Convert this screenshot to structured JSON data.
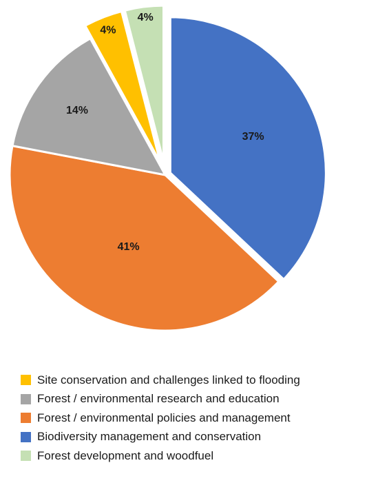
{
  "chart_data": {
    "type": "pie",
    "title": "",
    "slices": [
      {
        "label": "Biodiversity management and conservation",
        "value": 37,
        "display": "37%",
        "color": "#4472C4"
      },
      {
        "label": "Forest / environmental policies and management",
        "value": 41,
        "display": "41%",
        "color": "#ED7D31"
      },
      {
        "label": "Forest / environmental research and education",
        "value": 14,
        "display": "14%",
        "color": "#A5A5A5"
      },
      {
        "label": "Site conservation and challenges linked to flooding",
        "value": 4,
        "display": "4%",
        "color": "#FFC000"
      },
      {
        "label": "Forest development and woodfuel",
        "value": 4,
        "display": "4%",
        "color": "#C5E0B4"
      }
    ],
    "legend": {
      "placement": "bottom",
      "order": [
        "Site conservation and challenges linked to flooding",
        "Forest / environmental research and education",
        "Forest / environmental policies and management",
        "Biodiversity management and conservation",
        "Forest development and woodfuel"
      ]
    }
  }
}
